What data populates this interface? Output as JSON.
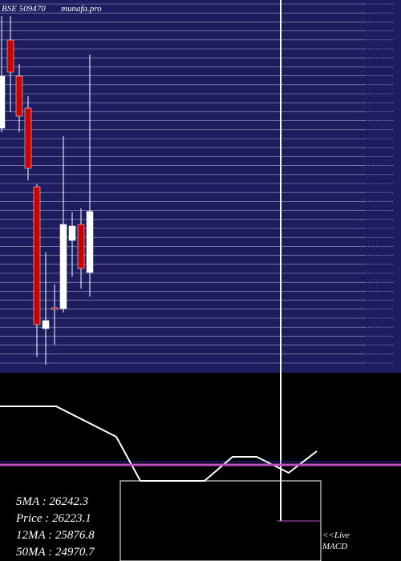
{
  "chart_data": {
    "type": "candlestick",
    "title": "BSE 509470",
    "subtitle": "munafa.pro",
    "open": [
      28300,
      30500,
      29600,
      28800,
      26840,
      23300,
      23820,
      23800,
      25500,
      25900,
      24700
    ],
    "close": [
      29600,
      29700,
      28600,
      27300,
      23400,
      23500,
      23780,
      25900,
      25860,
      24800,
      26223.1
    ],
    "high": [
      31100,
      31100,
      29900,
      29100,
      26900,
      25200,
      24400,
      28100,
      26200,
      26300,
      30140
    ],
    "low": [
      28200,
      28700,
      28200,
      27000,
      22600,
      22400,
      22900,
      23700,
      24600,
      24300,
      24100
    ],
    "up_color": "#ffffff",
    "down_color": "#cc0000",
    "background": "#1c1c5e",
    "ylim": [
      22200,
      31500
    ],
    "macd": {
      "series": [
        {
          "name": "MACD",
          "color": "#ffffff",
          "values": [
            93,
            93,
            55,
            0,
            0,
            30,
            30,
            10,
            37
          ],
          "x": [
            0,
            70,
            145,
            175,
            255,
            290,
            320,
            360,
            395
          ]
        },
        {
          "name": "Signal",
          "color": "#c050c0",
          "values": [
            20,
            20
          ],
          "x": [
            0,
            500
          ]
        }
      ],
      "xlim": [
        0,
        500
      ],
      "ylim": [
        -100,
        125
      ]
    },
    "stats": [
      "5MA : 26242.3",
      "Price  : 26223.1",
      "12MA : 25876.8",
      "50MA : 24970.7"
    ],
    "live_label": [
      "<<Live",
      "MACD"
    ]
  }
}
